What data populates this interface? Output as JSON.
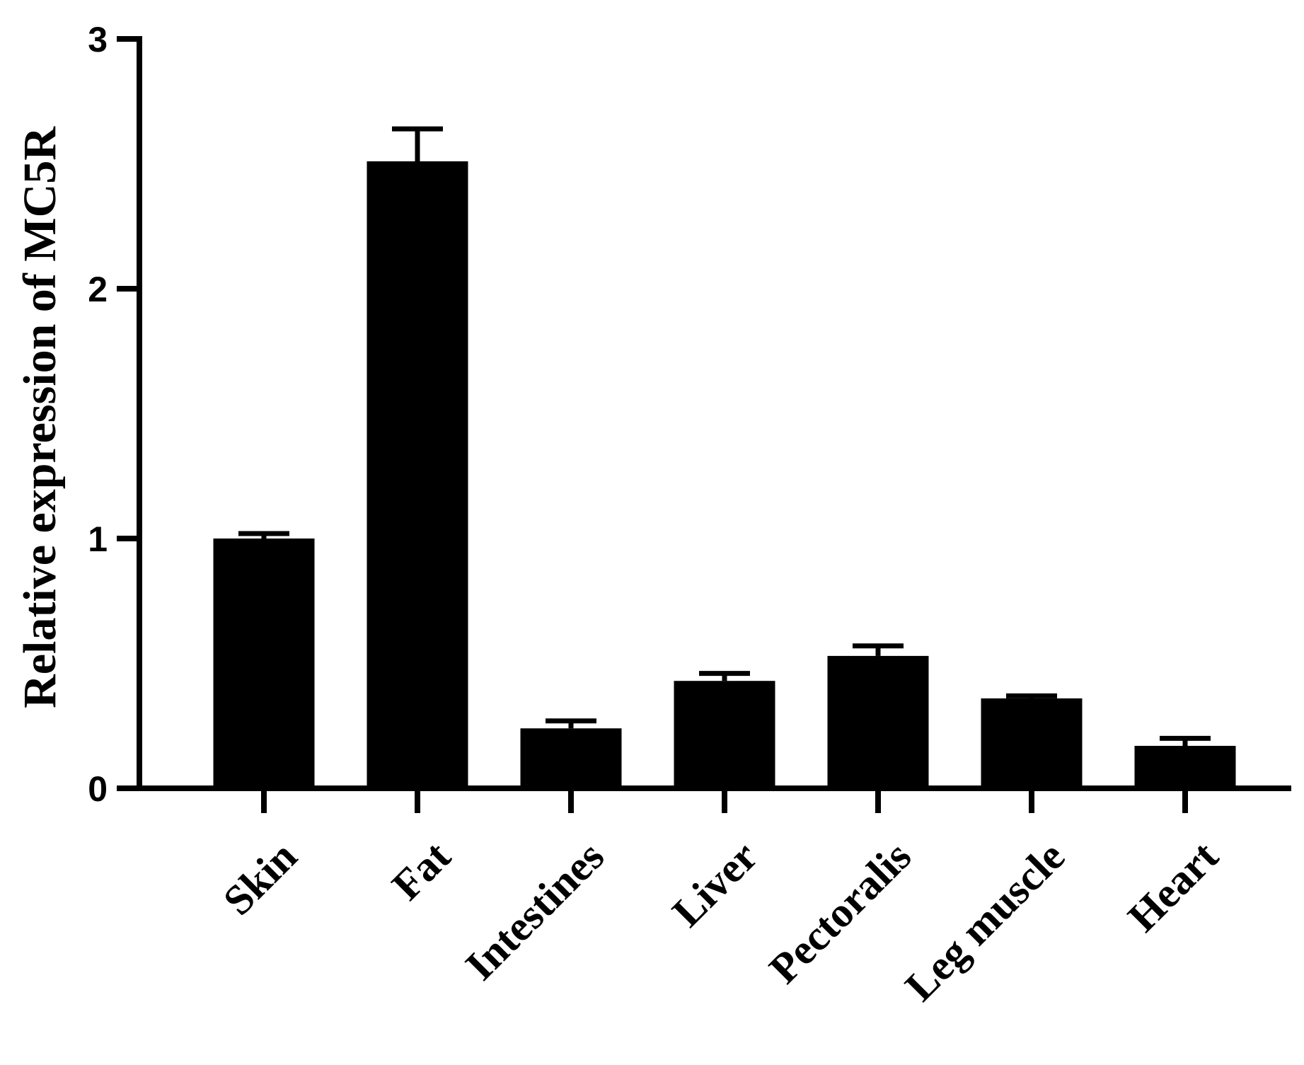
{
  "chart_data": {
    "type": "bar",
    "title": "",
    "xlabel": "",
    "ylabel": "Relative expression of MC5R",
    "categories": [
      "Skin",
      "Fat",
      "Intestines",
      "Liver",
      "Pectoralis",
      "Leg muscle",
      "Heart"
    ],
    "values": [
      1.0,
      2.51,
      0.24,
      0.43,
      0.53,
      0.36,
      0.17
    ],
    "error_upper": [
      0.02,
      0.13,
      0.03,
      0.03,
      0.04,
      0.01,
      0.03
    ],
    "ylim": [
      0,
      3
    ],
    "yticks": [
      "0",
      "1",
      "2",
      "3"
    ],
    "grid": false,
    "legend": "none",
    "bar_color": "#000000"
  }
}
